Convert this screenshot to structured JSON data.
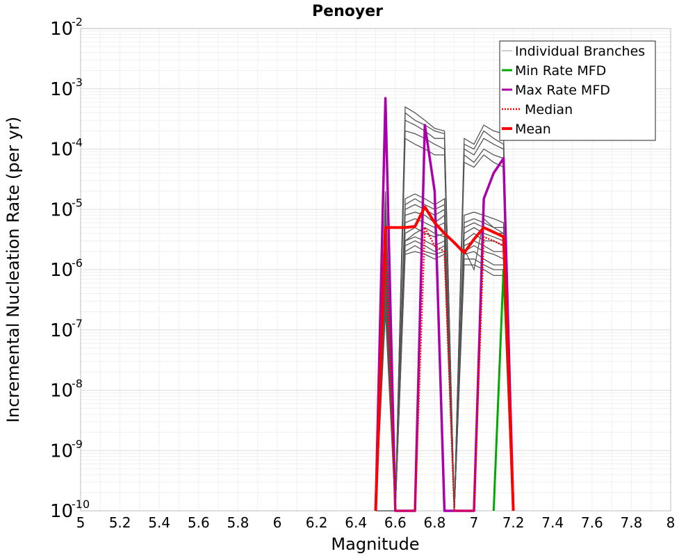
{
  "chart_data": {
    "type": "line",
    "title": "Penoyer",
    "xlabel": "Magnitude",
    "ylabel": "Incremental Nucleation Rate (per yr)",
    "xlim": [
      5,
      8
    ],
    "ylim": [
      1e-10,
      0.01
    ],
    "yscale": "log",
    "grid": true,
    "legend_position": "top-right",
    "x_ticks": [
      "5",
      "5.2",
      "5.4",
      "5.6",
      "5.8",
      "6",
      "6.2",
      "6.4",
      "6.6",
      "6.8",
      "7",
      "7.2",
      "7.4",
      "7.6",
      "7.8",
      "8"
    ],
    "y_tick_base": "10",
    "y_tick_exponents": [
      "-10",
      "-9",
      "-8",
      "-7",
      "-6",
      "-5",
      "-4",
      "-3",
      "-2"
    ],
    "legend": [
      "Individual Branches",
      "Min Rate MFD",
      "Max Rate MFD",
      "Median",
      "Mean"
    ],
    "series": [
      {
        "name": "Max Rate MFD",
        "color": "#aa00aa",
        "x": [
          6.5,
          6.55,
          6.6,
          6.7,
          6.75,
          6.8,
          6.85,
          6.9,
          6.95,
          7.0,
          7.05,
          7.1,
          7.15,
          7.2
        ],
        "y": [
          1e-10,
          0.0007,
          1e-10,
          1e-10,
          0.00025,
          2e-05,
          1e-10,
          1e-10,
          1e-10,
          1e-10,
          1.5e-05,
          4e-05,
          7e-05,
          1e-10
        ]
      },
      {
        "name": "Min Rate MFD",
        "color": "#00aa00",
        "x": [
          7.1,
          7.15,
          7.2
        ],
        "y": [
          1e-10,
          1e-06,
          1e-10
        ]
      },
      {
        "name": "Median",
        "color": "#ff0000",
        "style": "dotted",
        "x": [
          6.5,
          6.55,
          6.6,
          6.65,
          6.7,
          6.75,
          6.8,
          6.85,
          6.9,
          6.95,
          7.0,
          7.05,
          7.1,
          7.15,
          7.2
        ],
        "y": [
          1e-10,
          4e-06,
          1e-10,
          1e-10,
          1e-10,
          5e-06,
          2.5e-06,
          2e-06,
          1e-10,
          1e-10,
          1e-10,
          3.5e-06,
          3e-06,
          2.5e-06,
          1e-10
        ]
      },
      {
        "name": "Mean",
        "color": "#ff0000",
        "x": [
          6.5,
          6.55,
          6.6,
          6.65,
          6.7,
          6.75,
          6.8,
          6.85,
          6.9,
          6.95,
          7.0,
          7.05,
          7.1,
          7.15,
          7.2
        ],
        "y": [
          1e-10,
          5e-06,
          5e-06,
          5e-06,
          5.2e-06,
          1.1e-05,
          6e-06,
          4e-06,
          2.8e-06,
          1.9e-06,
          3.2e-06,
          5e-06,
          4.2e-06,
          3.5e-06,
          1e-10
        ]
      }
    ],
    "branches": {
      "name": "Individual Branches",
      "color": "#555555",
      "x": [
        6.5,
        6.55,
        6.6,
        6.65,
        6.7,
        6.75,
        6.8,
        6.85,
        6.9,
        6.95,
        7.0,
        7.05,
        7.1,
        7.15,
        7.2
      ],
      "samples": [
        [
          1e-10,
          2e-05,
          1e-10,
          0.0005,
          0.0004,
          0.0003,
          0.00022,
          0.0002,
          1e-10,
          0.00015,
          0.00012,
          0.00025,
          0.0002,
          0.00018,
          1e-10
        ],
        [
          1e-10,
          1e-05,
          1e-10,
          0.0004,
          0.0003,
          0.00025,
          0.0002,
          0.00018,
          1e-10,
          0.00012,
          0.0001,
          0.0002,
          0.00015,
          0.00012,
          1e-10
        ],
        [
          1e-10,
          8e-06,
          1e-10,
          0.0003,
          0.00025,
          0.0002,
          0.00015,
          0.00015,
          1e-10,
          0.0001,
          8e-05,
          0.00015,
          0.00012,
          0.0001,
          1e-10
        ],
        [
          1e-10,
          5e-06,
          1e-10,
          0.0002,
          0.00018,
          0.00015,
          0.00012,
          0.0001,
          1e-10,
          8e-05,
          6e-05,
          0.0001,
          8e-05,
          7e-05,
          1e-10
        ],
        [
          1e-10,
          3e-06,
          1e-10,
          0.00015,
          0.00012,
          0.0001,
          8e-05,
          8e-05,
          1e-10,
          6e-05,
          5e-05,
          8e-05,
          6e-05,
          5e-05,
          1e-10
        ],
        [
          1e-10,
          2e-06,
          1e-10,
          1.5e-05,
          1.8e-05,
          1.5e-05,
          1.2e-05,
          1.5e-05,
          1e-10,
          8e-06,
          9e-06,
          8e-06,
          7e-06,
          6e-06,
          1e-10
        ],
        [
          1e-10,
          1.5e-06,
          1e-10,
          1.2e-05,
          1.5e-05,
          1.2e-05,
          1e-05,
          1.2e-05,
          1e-10,
          6e-06,
          7e-06,
          6e-06,
          5e-06,
          5e-06,
          1e-10
        ],
        [
          1e-10,
          1e-06,
          1e-10,
          1e-05,
          1.2e-05,
          1e-05,
          8e-06,
          1e-05,
          1e-10,
          5e-06,
          6e-06,
          5e-06,
          4e-06,
          4e-06,
          1e-10
        ],
        [
          1e-10,
          8e-07,
          1e-10,
          8e-06,
          9e-06,
          8e-06,
          6e-06,
          8e-06,
          1e-10,
          4e-06,
          5e-06,
          4e-06,
          3.5e-06,
          3e-06,
          1e-10
        ],
        [
          1e-10,
          6e-07,
          1e-10,
          6e-06,
          7e-06,
          6e-06,
          5e-06,
          6e-06,
          1e-10,
          3e-06,
          4e-06,
          3e-06,
          3e-06,
          2.5e-06,
          1e-10
        ],
        [
          1e-10,
          5e-07,
          1e-10,
          4e-06,
          5e-06,
          4e-06,
          3.5e-06,
          4e-06,
          1e-10,
          2.5e-06,
          3e-06,
          2.5e-06,
          2e-06,
          2e-06,
          1e-10
        ],
        [
          1e-10,
          4e-07,
          1e-10,
          3e-06,
          3.5e-06,
          3e-06,
          2.5e-06,
          3e-06,
          1e-10,
          2e-06,
          2.5e-06,
          2e-06,
          1.8e-06,
          1.5e-06,
          1e-10
        ],
        [
          1e-10,
          3e-07,
          1e-10,
          2.5e-06,
          3e-06,
          2.5e-06,
          2e-06,
          2.5e-06,
          1e-10,
          1.8e-06,
          2e-06,
          1.5e-06,
          1.2e-06,
          1.2e-06,
          1e-10
        ],
        [
          1e-10,
          2e-07,
          1e-10,
          2e-06,
          2.5e-06,
          2e-06,
          1.8e-06,
          2e-06,
          1e-10,
          1.5e-06,
          1.5e-06,
          1.2e-06,
          1e-06,
          1e-06,
          1e-10
        ],
        [
          1e-10,
          1e-10,
          1e-10,
          1.8e-06,
          2e-06,
          1.8e-06,
          1.5e-06,
          1.8e-06,
          1e-10,
          1.2e-06,
          1.2e-06,
          1e-06,
          8e-07,
          8e-07,
          1e-10
        ],
        [
          1e-10,
          1e-10,
          1e-10,
          3e-06,
          4e-06,
          5e-06,
          4e-06,
          3.5e-06,
          1e-10,
          2.2e-06,
          1e-06,
          7e-06,
          5e-06,
          4e-06,
          1e-10
        ]
      ]
    }
  }
}
